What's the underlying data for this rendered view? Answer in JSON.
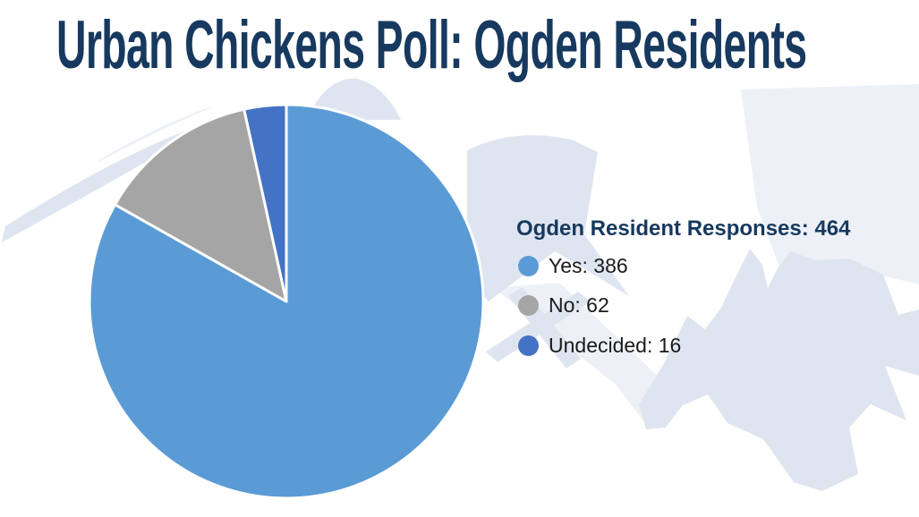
{
  "title": "Urban Chickens Poll: Ogden Residents",
  "colors": {
    "title_text": "#17395F",
    "legend_text": "#1A1A1A",
    "watermark_main": "#DFE5F0",
    "watermark_light": "#EDF1F7",
    "background": "#FFFFFF",
    "slice_separator": "#FFFFFF"
  },
  "chart_data": {
    "type": "pie",
    "title": "Urban Chickens Poll: Ogden Residents",
    "legend_title": "Ogden Resident Responses: 464",
    "total": 464,
    "categories": [
      "Yes",
      "No",
      "Undecided"
    ],
    "values": [
      386,
      62,
      16
    ],
    "slices": [
      {
        "label": "Yes",
        "value": 386,
        "color": "#5B9BD5",
        "legend_text": "Yes: 386"
      },
      {
        "label": "No",
        "value": 62,
        "color": "#A5A5A5",
        "legend_text": "No: 62"
      },
      {
        "label": "Undecided",
        "value": 16,
        "color": "#4472C4",
        "legend_text": "Undecided: 16"
      }
    ],
    "start_angle_deg": 0,
    "direction": "clockwise",
    "legend_position": "right",
    "grid": false
  }
}
